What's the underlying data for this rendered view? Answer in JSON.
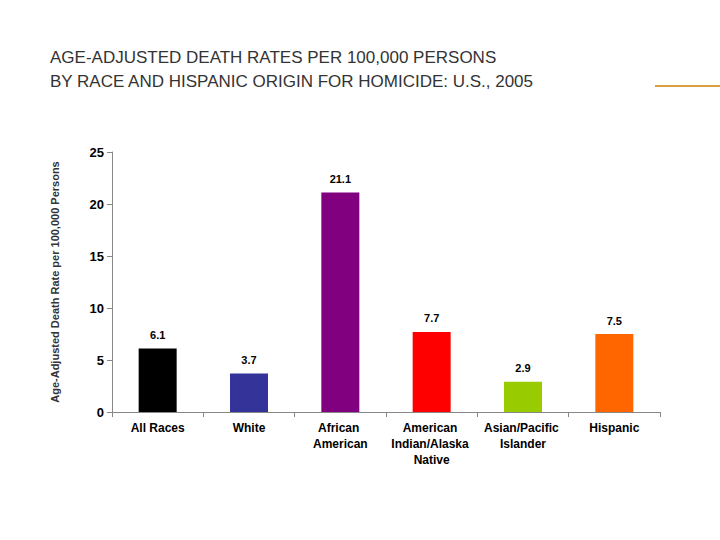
{
  "chart_data": {
    "type": "bar",
    "title": "AGE-ADJUSTED DEATH RATES PER 100,000 PERSONS\nBY RACE AND HISPANIC ORIGIN FOR HOMICIDE: U.S., 2005",
    "y_label": "Age-Adjusted Death Rate per 100,000 Persons",
    "categories": [
      "All Races",
      "White",
      "African American",
      "American Indian/Alaska Native",
      "Asian/Pacific Islander",
      "Hispanic"
    ],
    "values": [
      6.1,
      3.7,
      21.1,
      7.7,
      2.9,
      7.5
    ],
    "colors": [
      "#000000",
      "#333399",
      "#800080",
      "#ff0000",
      "#99cc00",
      "#ff6600"
    ],
    "ylim": [
      0,
      25
    ],
    "yticks": [
      0,
      5,
      10,
      15,
      20,
      25
    ],
    "grid": false,
    "data_labels": true
  }
}
